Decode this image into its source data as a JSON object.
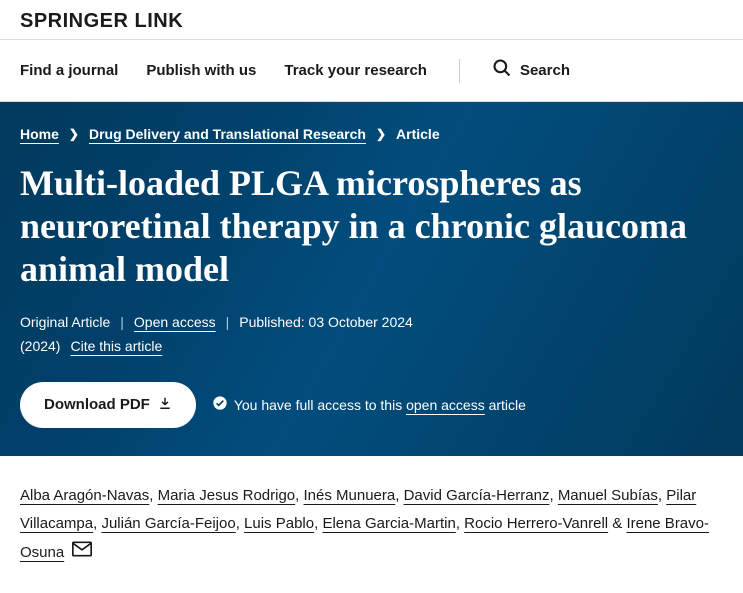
{
  "logo": "SPRINGER LINK",
  "nav": {
    "find_journal": "Find a journal",
    "publish": "Publish with us",
    "track": "Track your research",
    "search": "Search"
  },
  "breadcrumb": {
    "home": "Home",
    "journal": "Drug Delivery and Translational Research",
    "current": "Article"
  },
  "title": "Multi-loaded PLGA microspheres as neuroretinal therapy in a chronic glaucoma animal model",
  "meta": {
    "type": "Original Article",
    "access": "Open access",
    "published": "Published: 03 October 2024",
    "year": "(2024)",
    "cite": "Cite this article"
  },
  "download": {
    "label": "Download PDF",
    "access_prefix": "You have full access to this ",
    "access_link": "open access",
    "access_suffix": " article"
  },
  "authors": [
    "Alba Aragón-Navas",
    "Maria Jesus Rodrigo",
    "Inés Munuera",
    "David García-Herranz",
    "Manuel Subías",
    "Pilar Villacampa",
    "Julián García-Feijoo",
    "Luis Pablo",
    "Elena Garcia-Martin",
    "Rocio Herrero-Vanrell",
    "Irene Bravo-Osuna"
  ],
  "colors": {
    "hero_bg": "#01406a",
    "text_dark": "#1a1a1a"
  }
}
